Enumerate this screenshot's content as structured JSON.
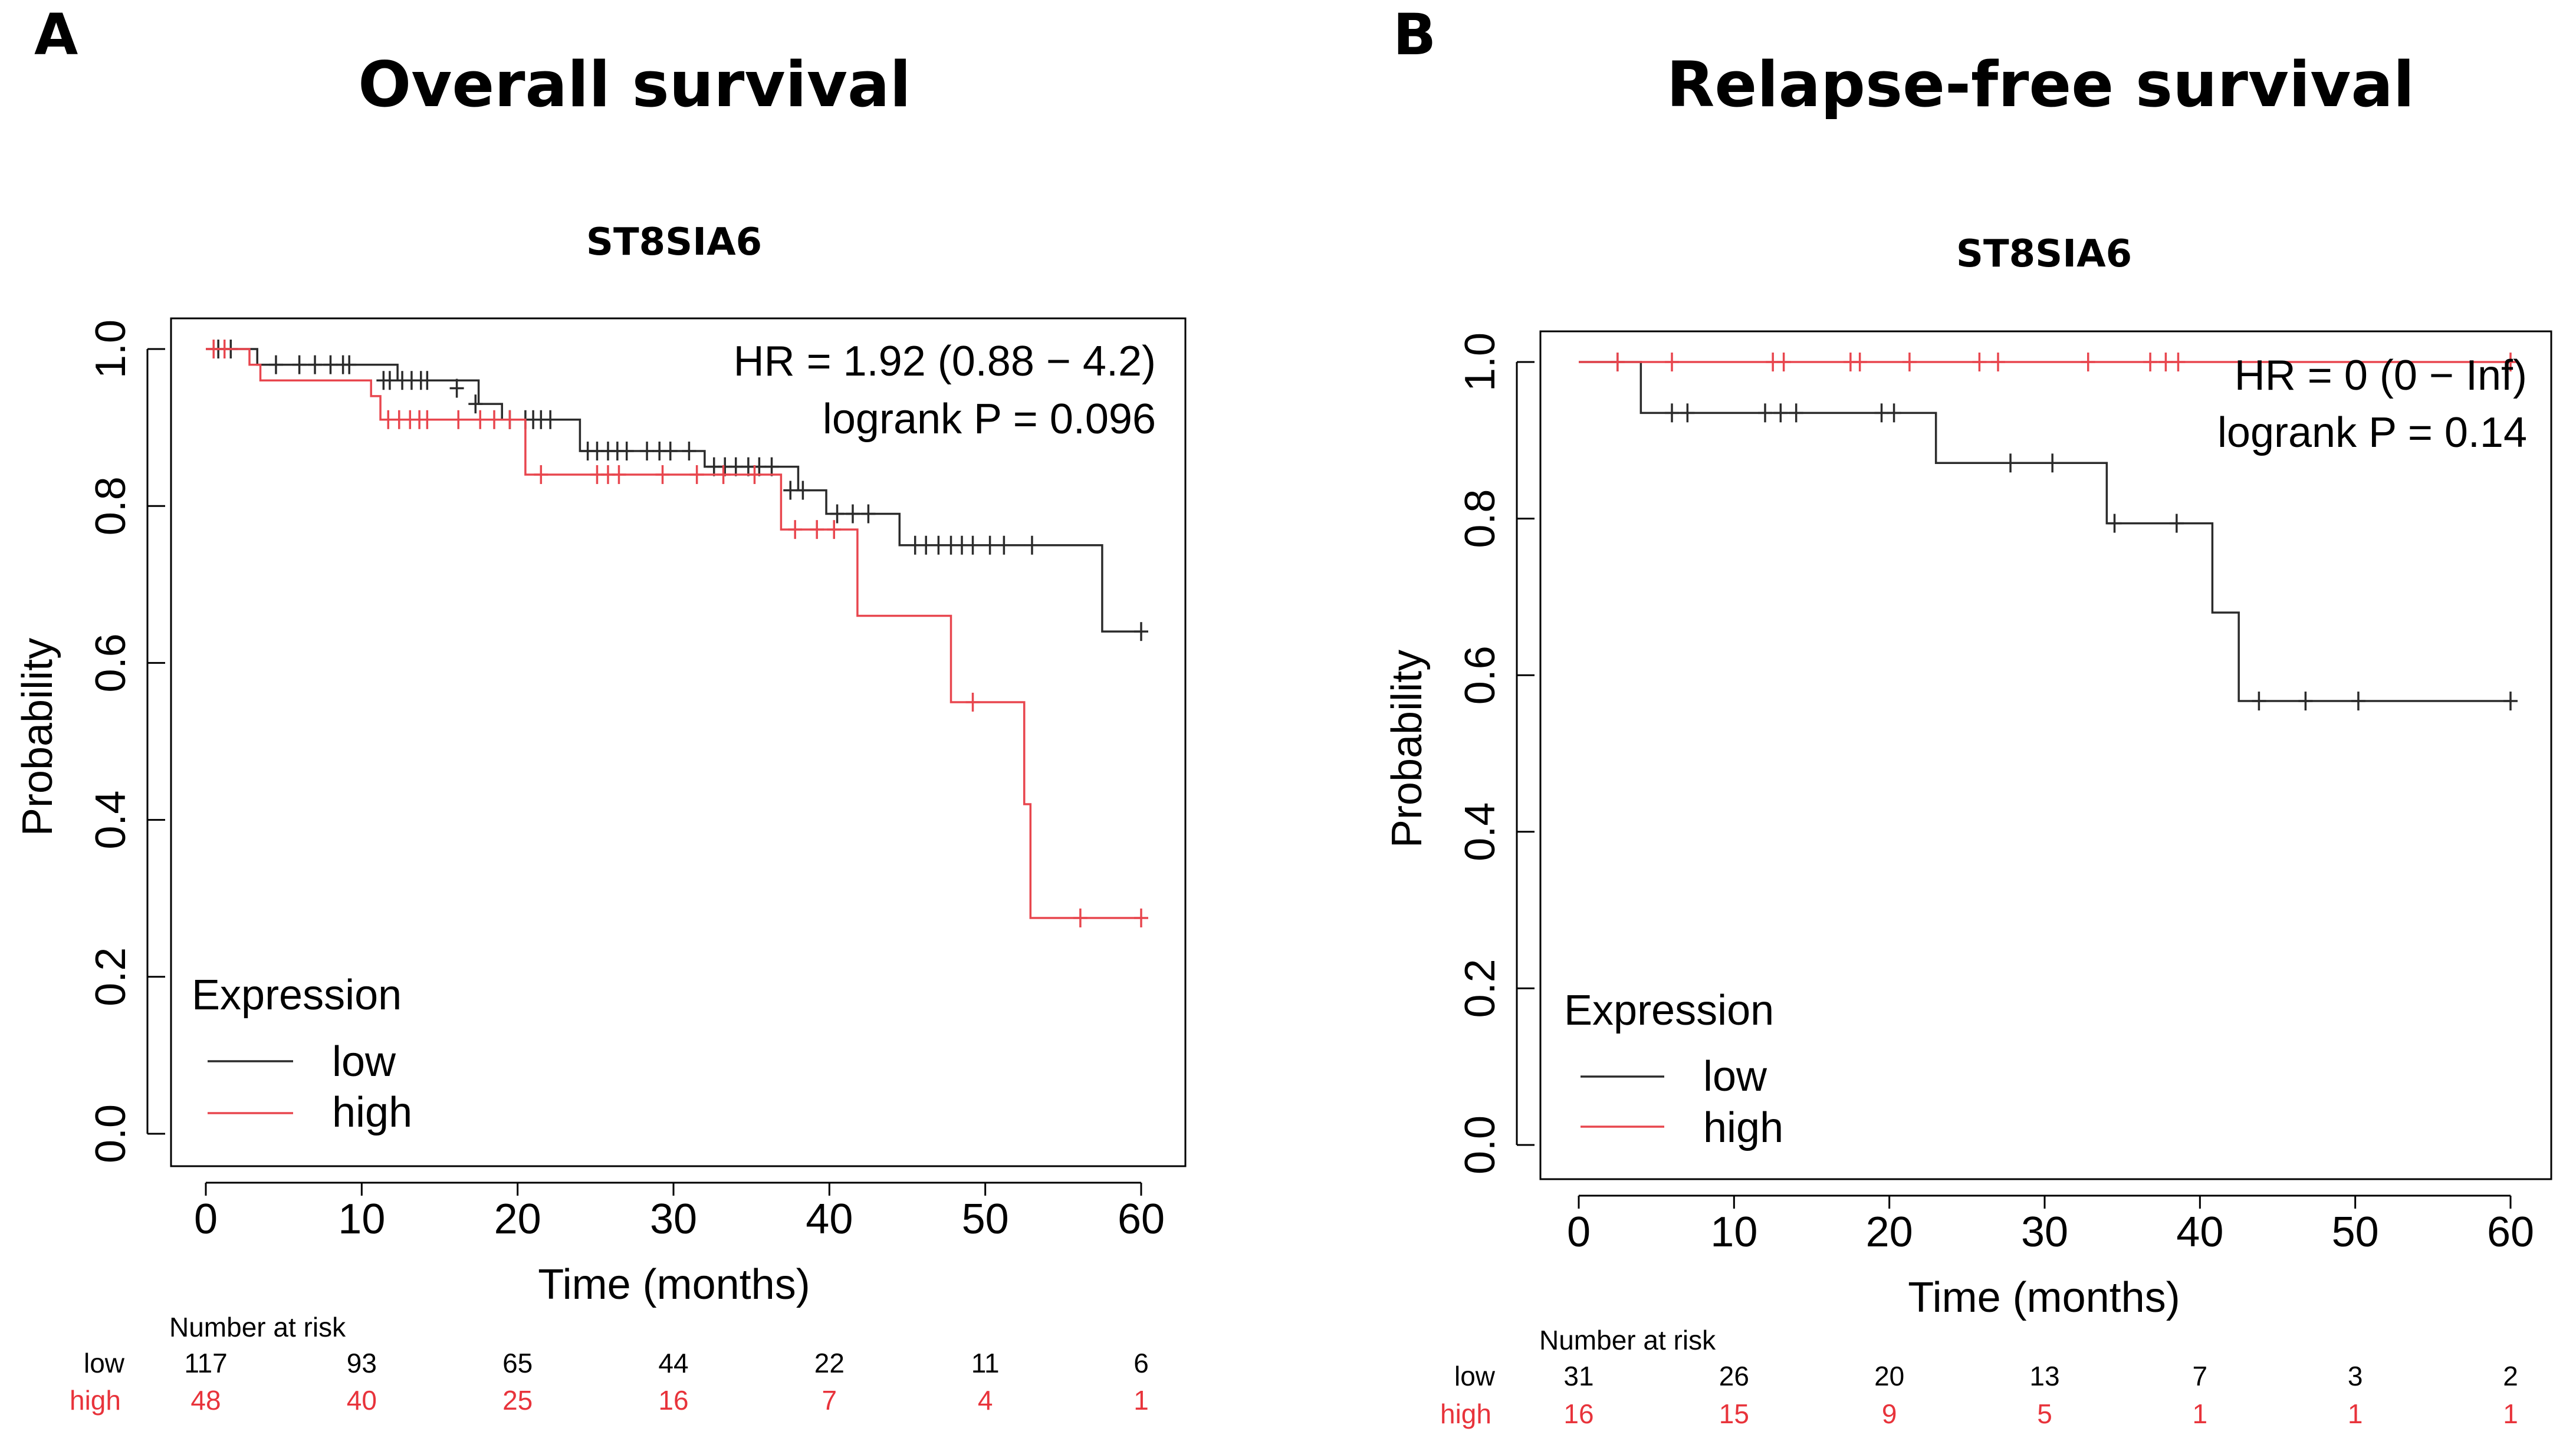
{
  "chart_data": [
    {
      "type": "line",
      "panel_label": "A",
      "title": "Overall survival",
      "subtitle": "ST8SIA6",
      "xlabel": "Time (months)",
      "ylabel": "Probability",
      "xlim": [
        0,
        60
      ],
      "ylim": [
        0,
        1
      ],
      "x_ticks": [
        "0",
        "10",
        "20",
        "30",
        "40",
        "50",
        "60"
      ],
      "y_ticks": [
        "0.0",
        "0.2",
        "0.4",
        "0.6",
        "0.8",
        "1.0"
      ],
      "stats": {
        "hr": "HR = 1.92 (0.88 − 4.2)",
        "p": "logrank P = 0.096"
      },
      "legend": {
        "title": "Expression",
        "position": "bottom-left",
        "entries": [
          "low",
          "high"
        ]
      },
      "series": [
        {
          "name": "low",
          "color": "#2b2b2b",
          "steps": [
            [
              0,
              1.0
            ],
            [
              2,
              1.0
            ],
            [
              3.3,
              0.98
            ],
            [
              10,
              0.98
            ],
            [
              12.3,
              0.96
            ],
            [
              15,
              0.96
            ],
            [
              17.5,
              0.93
            ],
            [
              19,
              0.91
            ],
            [
              22.5,
              0.91
            ],
            [
              24,
              0.87
            ],
            [
              30,
              0.87
            ],
            [
              32,
              0.85
            ],
            [
              37,
              0.85
            ],
            [
              38,
              0.82
            ],
            [
              39,
              0.82
            ],
            [
              39.8,
              0.79
            ],
            [
              44,
              0.79
            ],
            [
              44.5,
              0.75
            ],
            [
              57.5,
              0.75
            ],
            [
              57.5,
              0.64
            ],
            [
              60,
              0.64
            ]
          ],
          "censors": [
            [
              0.8,
              1.0
            ],
            [
              1.6,
              1.0
            ],
            [
              4.5,
              0.98
            ],
            [
              6,
              0.98
            ],
            [
              7,
              0.98
            ],
            [
              8,
              0.98
            ],
            [
              8.8,
              0.98
            ],
            [
              9.2,
              0.98
            ],
            [
              11.4,
              0.96
            ],
            [
              11.8,
              0.96
            ],
            [
              12.6,
              0.96
            ],
            [
              13.2,
              0.96
            ],
            [
              13.8,
              0.96
            ],
            [
              14.2,
              0.96
            ],
            [
              16.1,
              0.95
            ],
            [
              17.3,
              0.93
            ],
            [
              19.5,
              0.91
            ],
            [
              20.5,
              0.91
            ],
            [
              21,
              0.91
            ],
            [
              21.5,
              0.91
            ],
            [
              22.1,
              0.91
            ],
            [
              24.5,
              0.87
            ],
            [
              25.1,
              0.87
            ],
            [
              25.8,
              0.87
            ],
            [
              26.4,
              0.87
            ],
            [
              27,
              0.87
            ],
            [
              28.3,
              0.87
            ],
            [
              29.1,
              0.87
            ],
            [
              29.8,
              0.87
            ],
            [
              31,
              0.87
            ],
            [
              32.6,
              0.85
            ],
            [
              33.3,
              0.85
            ],
            [
              34,
              0.85
            ],
            [
              34.8,
              0.85
            ],
            [
              35.5,
              0.85
            ],
            [
              36.3,
              0.85
            ],
            [
              37.5,
              0.82
            ],
            [
              38.3,
              0.82
            ],
            [
              40.5,
              0.79
            ],
            [
              41.5,
              0.79
            ],
            [
              42.5,
              0.79
            ],
            [
              45.5,
              0.75
            ],
            [
              46.2,
              0.75
            ],
            [
              47,
              0.75
            ],
            [
              47.8,
              0.75
            ],
            [
              48.5,
              0.75
            ],
            [
              49.2,
              0.75
            ],
            [
              50.3,
              0.75
            ],
            [
              51.2,
              0.75
            ],
            [
              53,
              0.75
            ],
            [
              60,
              0.64
            ]
          ]
        },
        {
          "name": "high",
          "color": "#e8464e",
          "steps": [
            [
              0,
              1.0
            ],
            [
              2.2,
              1.0
            ],
            [
              2.8,
              0.98
            ],
            [
              3.5,
              0.96
            ],
            [
              10.3,
              0.96
            ],
            [
              10.6,
              0.94
            ],
            [
              11.2,
              0.91
            ],
            [
              20,
              0.91
            ],
            [
              20.5,
              0.84
            ],
            [
              36.5,
              0.84
            ],
            [
              36.9,
              0.77
            ],
            [
              41.2,
              0.77
            ],
            [
              41.8,
              0.66
            ],
            [
              47.3,
              0.66
            ],
            [
              47.8,
              0.55
            ],
            [
              52.3,
              0.55
            ],
            [
              52.5,
              0.42
            ],
            [
              52.9,
              0.275
            ],
            [
              60,
              0.275
            ]
          ],
          "censors": [
            [
              0.5,
              1.0
            ],
            [
              1.2,
              1.0
            ],
            [
              11.7,
              0.91
            ],
            [
              12.4,
              0.91
            ],
            [
              13.1,
              0.91
            ],
            [
              13.7,
              0.91
            ],
            [
              14.2,
              0.91
            ],
            [
              16.2,
              0.91
            ],
            [
              17.6,
              0.91
            ],
            [
              18.5,
              0.91
            ],
            [
              19.5,
              0.91
            ],
            [
              21.5,
              0.84
            ],
            [
              25.1,
              0.84
            ],
            [
              25.8,
              0.84
            ],
            [
              26.5,
              0.84
            ],
            [
              29.3,
              0.84
            ],
            [
              31.5,
              0.84
            ],
            [
              33.2,
              0.84
            ],
            [
              35.2,
              0.84
            ],
            [
              37.8,
              0.77
            ],
            [
              39.2,
              0.77
            ],
            [
              40.3,
              0.77
            ],
            [
              49.2,
              0.55
            ],
            [
              56.1,
              0.275
            ],
            [
              60,
              0.275
            ]
          ]
        }
      ],
      "risk_table": {
        "title": "Number at risk",
        "rows": [
          {
            "label": "low",
            "values": [
              "117",
              "93",
              "65",
              "44",
              "22",
              "11",
              "6"
            ]
          },
          {
            "label": "high",
            "values": [
              "48",
              "40",
              "25",
              "16",
              "7",
              "4",
              "1"
            ]
          }
        ]
      }
    },
    {
      "type": "line",
      "panel_label": "B",
      "title": "Relapse-free survival",
      "subtitle": "ST8SIA6",
      "xlabel": "Time (months)",
      "ylabel": "Probability",
      "xlim": [
        0,
        60
      ],
      "ylim": [
        0,
        1
      ],
      "x_ticks": [
        "0",
        "10",
        "20",
        "30",
        "40",
        "50",
        "60"
      ],
      "y_ticks": [
        "0.0",
        "0.2",
        "0.4",
        "0.6",
        "0.8",
        "1.0"
      ],
      "stats": {
        "hr": "HR = 0 (0 − Inf)",
        "p": "logrank P = 0.14"
      },
      "legend": {
        "title": "Expression",
        "position": "bottom-left",
        "entries": [
          "low",
          "high"
        ]
      },
      "series": [
        {
          "name": "low",
          "color": "#2b2b2b",
          "steps": [
            [
              0,
              1.0
            ],
            [
              4,
              1.0
            ],
            [
              4,
              0.935
            ],
            [
              23,
              0.935
            ],
            [
              23,
              0.871
            ],
            [
              34,
              0.871
            ],
            [
              34,
              0.794
            ],
            [
              40.8,
              0.794
            ],
            [
              40.8,
              0.68
            ],
            [
              42.5,
              0.68
            ],
            [
              42.5,
              0.567
            ],
            [
              60,
              0.567
            ]
          ],
          "censors": [
            [
              2.5,
              1.0
            ],
            [
              6,
              0.935
            ],
            [
              7,
              0.935
            ],
            [
              12,
              0.935
            ],
            [
              13,
              0.935
            ],
            [
              14,
              0.935
            ],
            [
              19.5,
              0.935
            ],
            [
              20.3,
              0.935
            ],
            [
              27.8,
              0.871
            ],
            [
              30.5,
              0.871
            ],
            [
              34.5,
              0.794
            ],
            [
              38.5,
              0.794
            ],
            [
              43.8,
              0.567
            ],
            [
              46.8,
              0.567
            ],
            [
              50.2,
              0.567
            ],
            [
              60,
              0.567
            ]
          ]
        },
        {
          "name": "high",
          "color": "#e8464e",
          "steps": [
            [
              0,
              1.0
            ],
            [
              60,
              1.0
            ]
          ],
          "censors": [
            [
              2.5,
              1.0
            ],
            [
              6,
              1.0
            ],
            [
              12.5,
              1.0
            ],
            [
              13.2,
              1.0
            ],
            [
              17.5,
              1.0
            ],
            [
              18.1,
              1.0
            ],
            [
              21.3,
              1.0
            ],
            [
              25.8,
              1.0
            ],
            [
              27,
              1.0
            ],
            [
              32.8,
              1.0
            ],
            [
              36.8,
              1.0
            ],
            [
              37.8,
              1.0
            ],
            [
              38.6,
              1.0
            ],
            [
              60,
              1.0
            ]
          ]
        }
      ],
      "risk_table": {
        "title": "Number at risk",
        "rows": [
          {
            "label": "low",
            "values": [
              "31",
              "26",
              "20",
              "13",
              "7",
              "3",
              "2"
            ]
          },
          {
            "label": "high",
            "values": [
              "16",
              "15",
              "9",
              "5",
              "1",
              "1",
              "1"
            ]
          }
        ]
      }
    }
  ]
}
